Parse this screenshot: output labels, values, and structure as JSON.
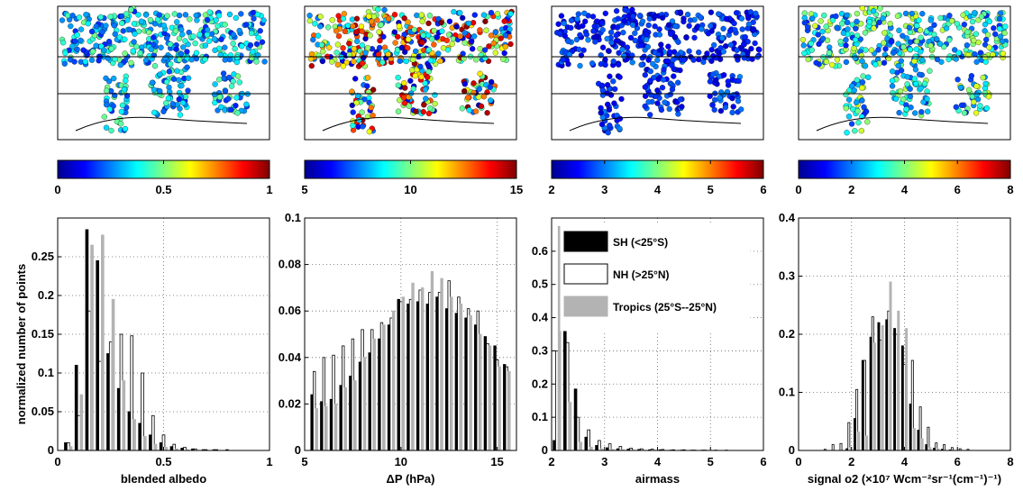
{
  "ylabel": "normalized number of points",
  "legend": [
    {
      "label": "SH (<25°S)",
      "color": "#000000"
    },
    {
      "label": "NH (>25°N)",
      "color": "#ffffff"
    },
    {
      "label": "Tropics (25°S--25°N)",
      "color": "#b3b3b3"
    }
  ],
  "colormap": "jet",
  "chart_data": [
    {
      "type": "bar",
      "xlabel": "blended albedo",
      "xlim": [
        0,
        1
      ],
      "ylim": [
        0,
        0.3
      ],
      "xticks": [
        "0",
        "0.5",
        "1"
      ],
      "yticks": [
        "0",
        "0.05",
        "0.1",
        "0.15",
        "0.2",
        "0.25"
      ],
      "colorbar_ticks": [
        "0",
        "0.5",
        "1"
      ],
      "x": [
        0.05,
        0.1,
        0.15,
        0.2,
        0.25,
        0.3,
        0.35,
        0.4,
        0.45,
        0.5,
        0.55,
        0.6,
        0.65,
        0.7,
        0.75,
        0.8,
        0.85,
        0.9,
        0.95
      ],
      "series": [
        {
          "name": "SH (<25°S)",
          "values": [
            0.01,
            0.11,
            0.285,
            0.245,
            0.125,
            0.08,
            0.05,
            0.035,
            0.02,
            0.01,
            0.005,
            0.003,
            0.002,
            0.001,
            0.001,
            0.0,
            0.0,
            0.0,
            0.0
          ]
        },
        {
          "name": "NH (>25°N)",
          "values": [
            0.01,
            0.045,
            0.18,
            0.115,
            0.14,
            0.15,
            0.148,
            0.1,
            0.045,
            0.02,
            0.008,
            0.004,
            0.002,
            0.001,
            0.001,
            0.001,
            0.0,
            0.0,
            0.0
          ]
        },
        {
          "name": "Tropics (25°S--25°N)",
          "values": [
            0.005,
            0.072,
            0.265,
            0.278,
            0.195,
            0.09,
            0.04,
            0.018,
            0.008,
            0.004,
            0.002,
            0.001,
            0.0,
            0.0,
            0.0,
            0.0,
            0.0,
            0.0,
            0.0
          ]
        }
      ]
    },
    {
      "type": "bar",
      "xlabel": "ΔP (hPa)",
      "xlim": [
        5,
        16
      ],
      "ylim": [
        0,
        0.1
      ],
      "xticks": [
        "5",
        "10",
        "15"
      ],
      "yticks": [
        "0",
        "0.02",
        "0.04",
        "0.06",
        "0.08",
        "0.1"
      ],
      "colorbar_ticks": [
        "5",
        "10",
        "15"
      ],
      "x": [
        5.5,
        6,
        6.5,
        7,
        7.5,
        8,
        8.5,
        9,
        9.5,
        10,
        10.5,
        11,
        11.5,
        12,
        12.5,
        13,
        13.5,
        14,
        14.5,
        15,
        15.5
      ],
      "series": [
        {
          "name": "SH (<25°S)",
          "values": [
            0.024,
            0.021,
            0.022,
            0.028,
            0.032,
            0.038,
            0.042,
            0.048,
            0.054,
            0.065,
            0.063,
            0.064,
            0.063,
            0.066,
            0.061,
            0.059,
            0.057,
            0.054,
            0.049,
            0.045,
            0.037
          ]
        },
        {
          "name": "NH (>25°N)",
          "values": [
            0.034,
            0.04,
            0.041,
            0.045,
            0.048,
            0.052,
            0.052,
            0.055,
            0.057,
            0.064,
            0.065,
            0.069,
            0.068,
            0.068,
            0.073,
            0.066,
            0.061,
            0.06,
            0.046,
            0.039,
            0.036
          ]
        },
        {
          "name": "Tropics (25°S--25°N)",
          "values": [
            0.018,
            0.019,
            0.02,
            0.027,
            0.03,
            0.04,
            0.048,
            0.054,
            0.06,
            0.066,
            0.072,
            0.07,
            0.077,
            0.074,
            0.066,
            0.063,
            0.058,
            0.05,
            0.045,
            0.036,
            0.034
          ]
        }
      ]
    },
    {
      "type": "bar",
      "xlabel": "airmass",
      "xlim": [
        2,
        6
      ],
      "ylim": [
        0,
        0.7
      ],
      "xticks": [
        "2",
        "3",
        "4",
        "5",
        "6"
      ],
      "yticks": [
        "0",
        "0.1",
        "0.2",
        "0.3",
        "0.4",
        "0.5",
        "0.6"
      ],
      "colorbar_ticks": [
        "2",
        "3",
        "4",
        "5",
        "6"
      ],
      "x": [
        2.1,
        2.3,
        2.5,
        2.7,
        2.9,
        3.1,
        3.3,
        3.5,
        3.7,
        3.9,
        4.1,
        4.3,
        4.5,
        4.7,
        4.9,
        5.1,
        5.3,
        5.5,
        5.7,
        5.9
      ],
      "series": [
        {
          "name": "SH (<25°S)",
          "values": [
            0.03,
            0.555,
            0.185,
            0.04,
            0.015,
            0.008,
            0.005,
            0.004,
            0.003,
            0.002,
            0.002,
            0.001,
            0.001,
            0.001,
            0.001,
            0.0,
            0.0,
            0.0,
            0.0,
            0.0
          ]
        },
        {
          "name": "NH (>25°N)",
          "values": [
            0.3,
            0.325,
            0.1,
            0.062,
            0.03,
            0.02,
            0.012,
            0.007,
            0.005,
            0.004,
            0.003,
            0.002,
            0.002,
            0.001,
            0.001,
            0.001,
            0.001,
            0.0,
            0.0,
            0.0
          ]
        },
        {
          "name": "Tropics (25°S--25°N)",
          "values": [
            0.675,
            0.145,
            0.025,
            0.01,
            0.005,
            0.003,
            0.002,
            0.001,
            0.001,
            0.001,
            0.0,
            0.0,
            0.0,
            0.0,
            0.0,
            0.0,
            0.0,
            0.0,
            0.0,
            0.0
          ]
        }
      ]
    },
    {
      "type": "bar",
      "xlabel": "signal o2 (×10⁷ Wcm⁻²sr⁻¹(cm⁻¹)⁻¹)",
      "xlim": [
        0,
        8
      ],
      "ylim": [
        0,
        0.4
      ],
      "xticks": [
        "0",
        "2",
        "4",
        "6",
        "8"
      ],
      "yticks": [
        "0",
        "0.1",
        "0.2",
        "0.3",
        "0.4"
      ],
      "colorbar_ticks": [
        "0",
        "2",
        "4",
        "6",
        "8"
      ],
      "x": [
        1.0,
        1.3,
        1.6,
        1.9,
        2.2,
        2.5,
        2.8,
        3.1,
        3.4,
        3.7,
        4.0,
        4.3,
        4.6,
        4.9,
        5.2,
        5.5,
        5.8,
        6.1,
        6.4,
        6.7,
        7.0
      ],
      "series": [
        {
          "name": "SH (<25°S)",
          "values": [
            0.0,
            0.0,
            0.0,
            0.003,
            0.055,
            0.155,
            0.195,
            0.22,
            0.225,
            0.21,
            0.18,
            0.08,
            0.035,
            0.01,
            0.004,
            0.002,
            0.001,
            0.0,
            0.0,
            0.0,
            0.0
          ]
        },
        {
          "name": "NH (>25°N)",
          "values": [
            0.002,
            0.01,
            0.012,
            0.048,
            0.105,
            0.155,
            0.23,
            0.19,
            0.24,
            0.2,
            0.148,
            0.155,
            0.075,
            0.04,
            0.013,
            0.01,
            0.005,
            0.003,
            0.002,
            0.0,
            0.0
          ]
        },
        {
          "name": "Tropics (25°S--25°N)",
          "values": [
            0.0,
            0.0,
            0.0,
            0.005,
            0.032,
            0.025,
            0.185,
            0.215,
            0.29,
            0.24,
            0.21,
            0.038,
            0.02,
            0.005,
            0.003,
            0.0,
            0.0,
            0.0,
            0.0,
            0.0,
            0.0
          ]
        }
      ]
    }
  ]
}
